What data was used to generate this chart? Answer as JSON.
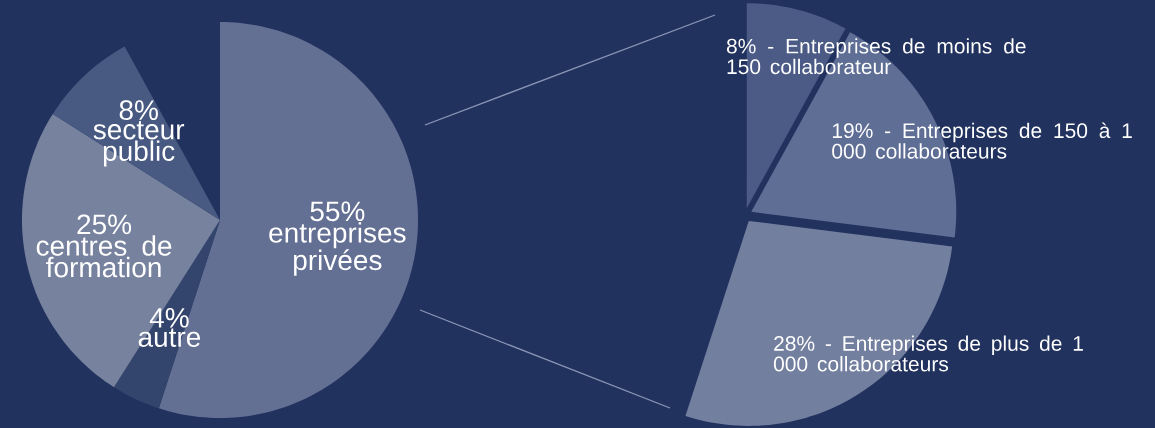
{
  "chart_data": [
    {
      "type": "pie",
      "categories": [
        "entreprises privées",
        "autre",
        "centres de formation",
        "secteur public"
      ],
      "values": [
        55,
        4,
        25,
        8
      ],
      "value_labels": [
        "55%",
        "4%",
        "25%",
        "8%"
      ],
      "colors": [
        "#636f93",
        "#33456d",
        "#77829f",
        "#485a82"
      ]
    },
    {
      "type": "pie",
      "categories": [
        "Entreprises de moins de 150 collaborateur",
        "Entreprises de 150 à 1 000 collaborateurs",
        "Entreprises de plus de 1 000 collaborateurs"
      ],
      "values": [
        8,
        19,
        28
      ],
      "value_labels": [
        "8% -",
        "19% -",
        "28% -"
      ],
      "colors": [
        "#4b5b85",
        "#5f6e95",
        "#737f9f"
      ]
    }
  ]
}
